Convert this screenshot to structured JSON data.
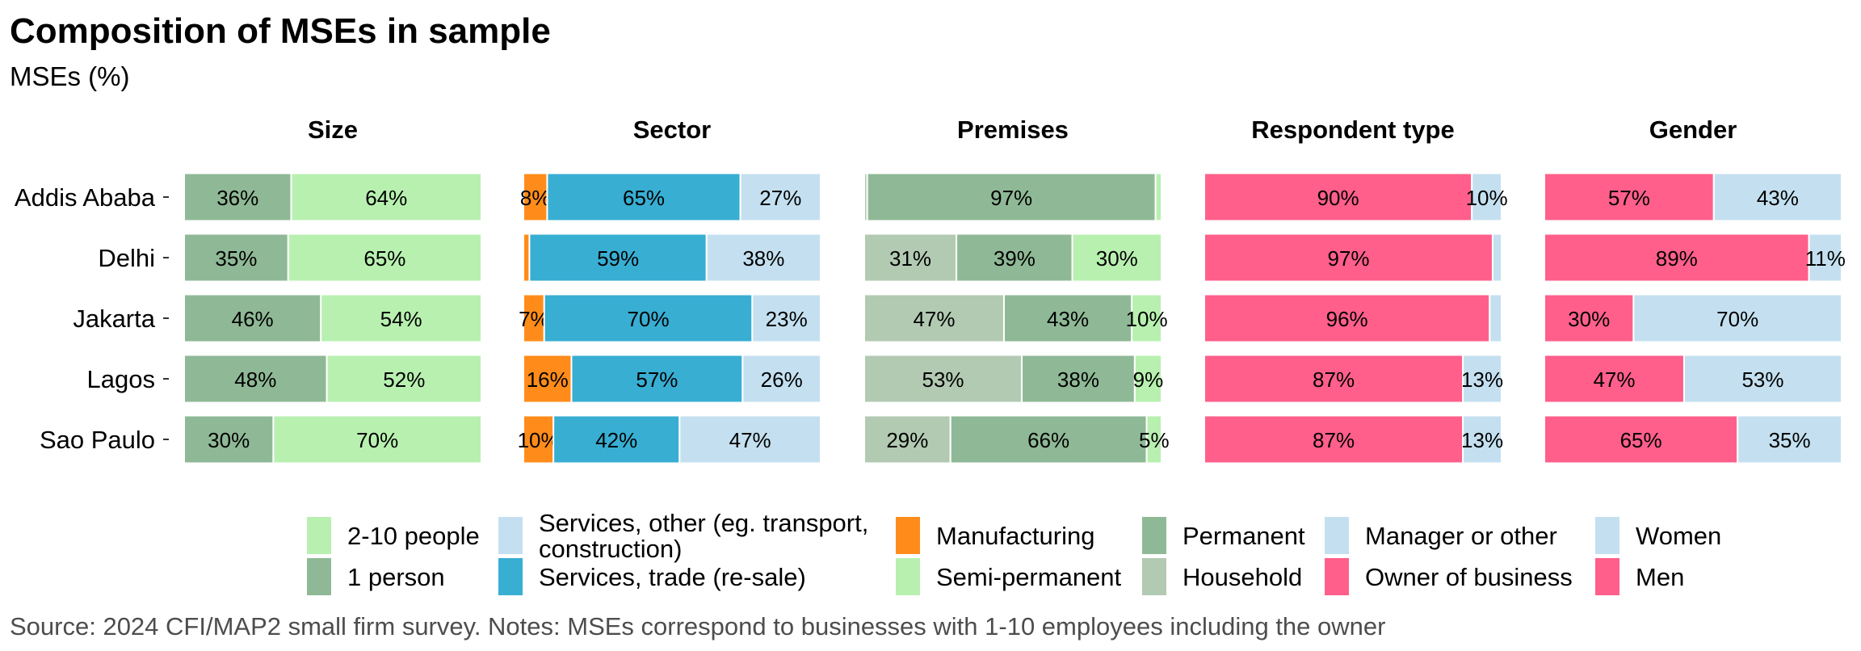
{
  "title": "Composition of MSEs in sample",
  "subtitle": "MSEs (%)",
  "caption": "Source: 2024 CFI/MAP2 small firm survey. Notes: MSEs correspond to businesses with 1-10 employees including the owner",
  "chart_data": {
    "type": "bar",
    "orientation": "horizontal",
    "stacked": true,
    "categories": [
      "Addis Ababa",
      "Delhi",
      "Jakarta",
      "Lagos",
      "Sao Paulo"
    ],
    "xlim": [
      0,
      100
    ],
    "panels": [
      {
        "title": "Size",
        "series": [
          {
            "name": "1 person",
            "color": "#8fb996",
            "values": [
              36,
              35,
              46,
              48,
              30
            ],
            "labels": [
              "36%",
              "35%",
              "46%",
              "48%",
              "30%"
            ]
          },
          {
            "name": "2-10 people",
            "color": "#b8f0b0",
            "values": [
              64,
              65,
              54,
              52,
              70
            ],
            "labels": [
              "64%",
              "65%",
              "54%",
              "52%",
              "70%"
            ]
          }
        ]
      },
      {
        "title": "Sector",
        "series": [
          {
            "name": "Manufacturing",
            "color": "#ff8c1a",
            "values": [
              8,
              2,
              7,
              16,
              10
            ],
            "labels": [
              "8%",
              "",
              "7%",
              "16%",
              "10%"
            ]
          },
          {
            "name": "Services, trade (re-sale)",
            "color": "#38aed3",
            "values": [
              65,
              59,
              70,
              57,
              42
            ],
            "labels": [
              "65%",
              "59%",
              "70%",
              "57%",
              "42%"
            ]
          },
          {
            "name": "Services, other (eg. transport, construction)",
            "color": "#c4e0f0",
            "values": [
              27,
              38,
              23,
              26,
              47
            ],
            "labels": [
              "27%",
              "38%",
              "23%",
              "26%",
              "47%"
            ]
          }
        ]
      },
      {
        "title": "Premises",
        "series": [
          {
            "name": "Household",
            "color": "#b2cab2",
            "values": [
              1,
              31,
              47,
              53,
              29
            ],
            "labels": [
              "",
              "31%",
              "47%",
              "53%",
              "29%"
            ]
          },
          {
            "name": "Permanent",
            "color": "#8fb996",
            "values": [
              97,
              39,
              43,
              38,
              66
            ],
            "labels": [
              "97%",
              "39%",
              "43%",
              "38%",
              "66%"
            ]
          },
          {
            "name": "Semi-permanent",
            "color": "#b8f0b0",
            "values": [
              2,
              30,
              10,
              9,
              5
            ],
            "labels": [
              "",
              "30%",
              "10%",
              "9%",
              "5%"
            ]
          }
        ]
      },
      {
        "title": "Respondent type",
        "series": [
          {
            "name": "Owner of business",
            "color": "#ff5f8a",
            "values": [
              90,
              97,
              96,
              87,
              87
            ],
            "labels": [
              "90%",
              "97%",
              "96%",
              "87%",
              "87%"
            ]
          },
          {
            "name": "Manager or other",
            "color": "#c4e0f0",
            "values": [
              10,
              3,
              4,
              13,
              13
            ],
            "labels": [
              "10%",
              "",
              "",
              "13%",
              "13%"
            ]
          }
        ]
      },
      {
        "title": "Gender",
        "series": [
          {
            "name": "Men",
            "color": "#ff5f8a",
            "values": [
              57,
              89,
              30,
              47,
              65
            ],
            "labels": [
              "57%",
              "89%",
              "30%",
              "47%",
              "65%"
            ]
          },
          {
            "name": "Women",
            "color": "#c4e0f0",
            "values": [
              43,
              11,
              70,
              53,
              35
            ],
            "labels": [
              "43%",
              "11%",
              "70%",
              "53%",
              "35%"
            ]
          }
        ]
      }
    ],
    "legend": {
      "position": "bottom",
      "columns": [
        [
          {
            "label": "2-10 people",
            "color": "#b8f0b0"
          },
          {
            "label": "1 person",
            "color": "#8fb996"
          }
        ],
        [
          {
            "label": "Services, other (eg. transport, construction)",
            "lines": [
              "Services, other (eg. transport,",
              "construction)"
            ],
            "color": "#c4e0f0"
          },
          {
            "label": "Services, trade (re-sale)",
            "color": "#38aed3"
          }
        ],
        [
          {
            "label": "Manufacturing",
            "color": "#ff8c1a"
          },
          {
            "label": "Semi-permanent",
            "color": "#b8f0b0"
          }
        ],
        [
          {
            "label": "Permanent",
            "color": "#8fb996"
          },
          {
            "label": "Household",
            "color": "#b2cab2"
          }
        ],
        [
          {
            "label": "Manager or other",
            "color": "#c4e0f0"
          },
          {
            "label": "Owner of business",
            "color": "#ff5f8a"
          }
        ],
        [
          {
            "label": "Women",
            "color": "#c4e0f0"
          },
          {
            "label": "Men",
            "color": "#ff5f8a"
          }
        ]
      ]
    }
  }
}
